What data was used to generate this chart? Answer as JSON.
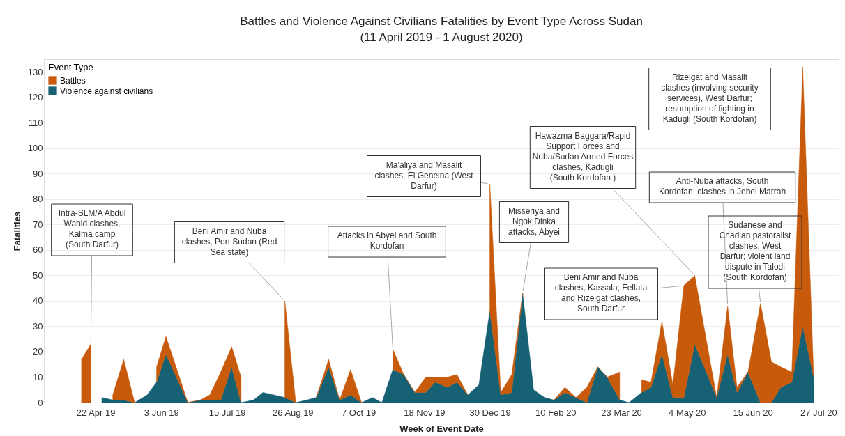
{
  "chart_data": {
    "type": "area",
    "title": "Battles and Violence Against Civilians Fatalities by Event Type Across Sudan",
    "subtitle": "(11 April 2019 - 1 August 2020)",
    "xlabel": "Week of Event Date",
    "ylabel": "Fatalities",
    "legend_title": "Event Type",
    "legend": "top left",
    "grid": "y",
    "stacked": true,
    "xlim": [
      "2019-03-20",
      "2020-08-09"
    ],
    "ylim": [
      0,
      135
    ],
    "xticks": [
      {
        "value": "2019-04-22",
        "label": "22 Apr 19"
      },
      {
        "value": "2019-06-03",
        "label": "3 Jun 19"
      },
      {
        "value": "2019-07-15",
        "label": "15 Jul 19"
      },
      {
        "value": "2019-08-26",
        "label": "26 Aug 19"
      },
      {
        "value": "2019-10-07",
        "label": "7 Oct 19"
      },
      {
        "value": "2019-11-18",
        "label": "18 Nov 19"
      },
      {
        "value": "2019-12-30",
        "label": "30 Dec 19"
      },
      {
        "value": "2020-02-10",
        "label": "10 Feb 20"
      },
      {
        "value": "2020-03-23",
        "label": "23 Mar 20"
      },
      {
        "value": "2020-05-04",
        "label": "4 May 20"
      },
      {
        "value": "2020-06-15",
        "label": "15 Jun 20"
      },
      {
        "value": "2020-07-27",
        "label": "27 Jul 20"
      }
    ],
    "yticks": [
      0,
      10,
      20,
      30,
      40,
      50,
      60,
      70,
      80,
      90,
      100,
      110,
      120,
      130
    ],
    "x": [
      "2019-04-13",
      "2019-04-19",
      "2019-04-26",
      "2019-05-03",
      "2019-05-10",
      "2019-05-17",
      "2019-05-25",
      "2019-05-31",
      "2019-06-06",
      "2019-06-20",
      "2019-06-28",
      "2019-07-04",
      "2019-07-11",
      "2019-07-18",
      "2019-07-24",
      "2019-08-01",
      "2019-08-07",
      "2019-08-21",
      "2019-08-28",
      "2019-09-04",
      "2019-09-10",
      "2019-09-18",
      "2019-09-25",
      "2019-10-02",
      "2019-10-09",
      "2019-10-16",
      "2019-10-22",
      "2019-10-29",
      "2019-11-05",
      "2019-11-12",
      "2019-11-19",
      "2019-11-25",
      "2019-12-03",
      "2019-12-09",
      "2019-12-16",
      "2019-12-23",
      "2019-12-30",
      "2020-01-06",
      "2020-01-13",
      "2020-01-20",
      "2020-01-27",
      "2020-02-03",
      "2020-02-09",
      "2020-02-16",
      "2020-02-23",
      "2020-03-01",
      "2020-03-08",
      "2020-03-14",
      "2020-03-22",
      "2020-03-28",
      "2020-04-05",
      "2020-04-11",
      "2020-04-18",
      "2020-04-25",
      "2020-05-02",
      "2020-05-09",
      "2020-05-23",
      "2020-05-30",
      "2020-06-05",
      "2020-06-12",
      "2020-06-20",
      "2020-06-27",
      "2020-07-03",
      "2020-07-10",
      "2020-07-17",
      "2020-07-24"
    ],
    "series": [
      {
        "name": "Violence against civilians",
        "color": "#176175",
        "values": [
          null,
          null,
          2,
          1,
          1,
          0,
          3,
          8,
          19,
          0,
          1,
          1,
          1,
          14,
          0,
          1,
          4,
          2,
          0,
          1,
          2,
          14,
          1,
          3,
          0,
          2,
          0,
          13,
          11,
          4,
          4,
          8,
          6,
          8,
          3,
          7,
          36,
          3,
          4,
          43,
          5,
          2,
          1,
          4,
          2,
          0,
          14,
          10,
          1,
          0,
          4,
          6,
          19,
          2,
          2,
          23,
          2,
          19,
          4,
          12,
          0,
          0,
          6,
          8,
          30,
          10
        ]
      },
      {
        "name": "Battles",
        "color": "#c85a0c",
        "values": [
          17,
          23,
          null,
          2,
          16,
          0,
          null,
          6,
          7,
          0,
          0,
          2,
          11,
          8,
          10,
          null,
          null,
          38,
          0,
          null,
          0,
          3,
          0,
          10,
          0,
          null,
          null,
          8,
          0,
          0,
          6,
          2,
          4,
          3,
          0,
          null,
          50,
          1,
          7,
          0,
          null,
          null,
          0,
          2,
          0,
          6,
          0,
          0,
          11,
          null,
          5,
          2,
          13,
          5,
          44,
          27,
          0,
          19,
          2,
          0,
          39,
          16,
          8,
          4,
          102,
          0
        ]
      }
    ],
    "annotations": [
      {
        "text": "Intra-SLM/A Abdul Wahid clashes, Kalma camp (South Darfur)",
        "x": "2019-04-19",
        "y": 23
      },
      {
        "text": "Beni Amir and Nuba clashes, Port Sudan (Red Sea state)",
        "x": "2019-08-21",
        "y": 40
      },
      {
        "text": "Attacks in Abyei and South Kordofan",
        "x": "2019-10-29",
        "y": 21
      },
      {
        "text": "Ma’aliya and Masalit clashes, El Geneina (West Darfur)",
        "x": "2019-12-30",
        "y": 86
      },
      {
        "text": "Misseriya and Ngok Dinka attacks, Abyei",
        "x": "2020-01-20",
        "y": 43
      },
      {
        "text": "Hawazma Baggara/Rapid Support Forces and Nuba/Sudan Armed Forces clashes, Kadugli (South Kordofan )",
        "x": "2020-05-09",
        "y": 50
      },
      {
        "text": "Beni Amir and Nuba clashes, Kassala; Fellata and Rizeigat clashes, South Darfur",
        "x": "2020-05-02",
        "y": 46
      },
      {
        "text": "Anti-Nuba attacks, South Kordofan; clashes in Jebel Marrah",
        "x": "2020-05-30",
        "y": 38
      },
      "Rizeigat and Masalit clashes (involving security services), West Darfur; resumption of fighting in Kadugli (South Kordofan)",
      {
        "text": "Sudanese and Chadian pastoralist clashes, West Darfur; violent land dispute in Talodi (South Kordofan)",
        "x": "2020-06-20",
        "y": 39
      }
    ]
  }
}
